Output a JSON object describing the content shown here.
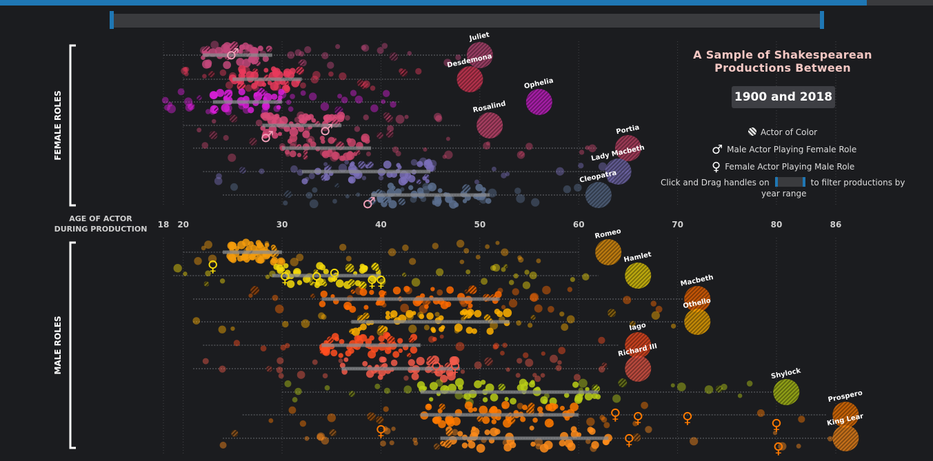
{
  "chart_data": {
    "type": "scatter",
    "title": "A Sample of Shakespearean Productions Between",
    "title_range": "1900 and 2018",
    "xlabel": "AGE OF ACTOR DURING PRODUCTION",
    "x_ticks": [
      18,
      20,
      30,
      40,
      50,
      60,
      70,
      80,
      86
    ],
    "xlim": [
      18,
      86
    ],
    "groups": [
      {
        "label": "FEMALE ROLES",
        "roles": [
          {
            "name": "Juliet",
            "color": "#c2487a",
            "label_age": 50,
            "min": 18,
            "max": 49,
            "iqr": [
              22,
              29
            ]
          },
          {
            "name": "Desdemona",
            "color": "#e83a5c",
            "label_age": 49,
            "min": 20,
            "max": 44,
            "iqr": [
              25,
              32
            ]
          },
          {
            "name": "Ophelia",
            "color": "#d61fd6",
            "label_age": 56,
            "min": 18,
            "max": 42,
            "iqr": [
              23,
              30
            ]
          },
          {
            "name": "Rosalind",
            "color": "#d84a78",
            "label_age": 51,
            "min": 20,
            "max": 48,
            "iqr": [
              28,
              36
            ]
          },
          {
            "name": "Portia",
            "color": "#c8446a",
            "label_age": 65,
            "min": 21,
            "max": 62,
            "iqr": [
              30,
              39
            ]
          },
          {
            "name": "Lady Macbeth",
            "color": "#7a6fb8",
            "label_age": 64,
            "min": 22,
            "max": 65,
            "iqr": [
              32,
              45
            ]
          },
          {
            "name": "Cleopatra",
            "color": "#5b6e8e",
            "label_age": 62,
            "min": 24,
            "max": 61,
            "iqr": [
              39,
              51
            ]
          }
        ]
      },
      {
        "label": "MALE ROLES",
        "roles": [
          {
            "name": "Romeo",
            "color": "#f59c0c",
            "label_age": 63,
            "min": 20,
            "max": 60,
            "iqr": [
              24,
              30
            ]
          },
          {
            "name": "Hamlet",
            "color": "#f5d90a",
            "label_age": 66,
            "min": 19,
            "max": 62,
            "iqr": [
              29,
              40
            ]
          },
          {
            "name": "Macbeth",
            "color": "#ff6a00",
            "label_age": 72,
            "min": 21,
            "max": 71,
            "iqr": [
              34,
              52
            ]
          },
          {
            "name": "Othello",
            "color": "#ffb000",
            "label_age": 72,
            "min": 21,
            "max": 71,
            "iqr": [
              37,
              53
            ]
          },
          {
            "name": "Iago",
            "color": "#ff4e20",
            "label_age": 66,
            "min": 22,
            "max": 64,
            "iqr": [
              34,
              44
            ]
          },
          {
            "name": "Richard III",
            "color": "#f25a4a",
            "label_age": 66,
            "min": 21,
            "max": 63,
            "iqr": [
              36,
              48
            ]
          },
          {
            "name": "Shylock",
            "color": "#b8cc16",
            "label_age": 81,
            "min": 30,
            "max": 80,
            "iqr": [
              44,
              62
            ]
          },
          {
            "name": "Prospero",
            "color": "#ff7a00",
            "label_age": 87,
            "min": 26,
            "max": 85,
            "iqr": [
              44,
              60
            ]
          },
          {
            "name": "King Lear",
            "color": "#ff8c1a",
            "label_age": 87,
            "min": 24,
            "max": 86,
            "iqr": [
              46,
              63
            ]
          }
        ]
      }
    ],
    "legend": [
      {
        "symbol": "hatched-circle",
        "label": "Actor of Color"
      },
      {
        "symbol": "male",
        "label": "Male Actor Playing Female Role"
      },
      {
        "symbol": "female",
        "label": "Female Actor Playing Male Role"
      }
    ],
    "grid": "vertical dotted at x ticks"
  },
  "filter_note_pre": "Click and Drag handles on",
  "filter_note_post": "to filter productions by",
  "filter_note_line2": "year range",
  "male_glyph": "♂",
  "female_glyph": "♀"
}
